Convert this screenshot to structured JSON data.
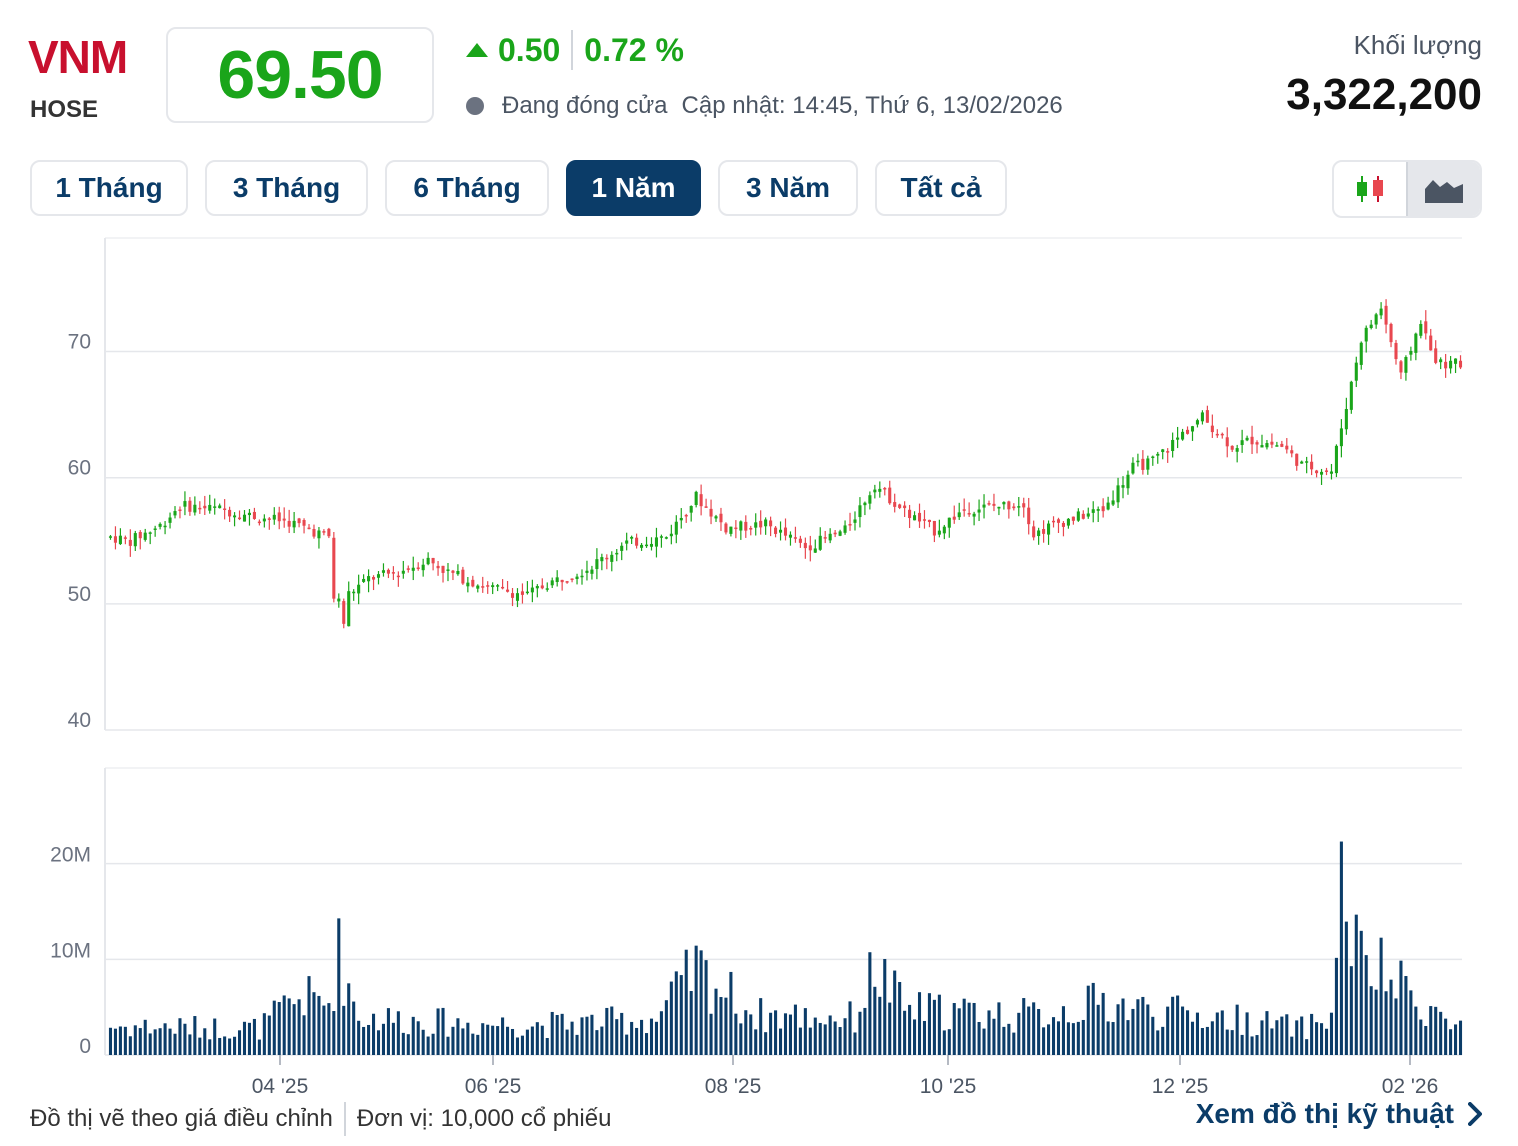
{
  "header": {
    "ticker": "VNM",
    "exchange": "HOSE",
    "price": "69.50",
    "change": "0.50",
    "change_pct": "0.72 %",
    "status": "Đang đóng cửa",
    "updated": "Cập nhật: 14:45, Thứ 6, 13/02/2026",
    "volume_label": "Khối lượng",
    "volume_value": "3,322,200"
  },
  "tabs": [
    {
      "label": "1 Tháng",
      "active": false
    },
    {
      "label": "3 Tháng",
      "active": false
    },
    {
      "label": "6 Tháng",
      "active": false
    },
    {
      "label": "1 Năm",
      "active": true
    },
    {
      "label": "3 Năm",
      "active": false
    },
    {
      "label": "Tất cả",
      "active": false
    }
  ],
  "chart_toggle": {
    "candlestick_icon": "candlestick-icon",
    "area_icon": "area-chart-icon",
    "selected": "area"
  },
  "colors": {
    "up": "#1aa51a",
    "down": "#e8474f",
    "volume": "#0b3c68",
    "brand": "#c8102e",
    "accent": "#0b3c68"
  },
  "chart_data": {
    "type": "candlestick",
    "price_axis": {
      "ticks": [
        40,
        50,
        60,
        70
      ],
      "ylim": [
        40,
        79
      ]
    },
    "volume_axis": {
      "ticks": [
        0,
        10000000,
        20000000
      ],
      "tick_labels": [
        "0",
        "10M",
        "20M"
      ],
      "ylim": [
        0,
        30000000
      ]
    },
    "x_ticks": [
      "04 '25",
      "06 '25",
      "08 '25",
      "10 '25",
      "12 '25",
      "02 '26"
    ],
    "grid": true,
    "price_path": [
      [
        0,
        55.3
      ],
      [
        4,
        55.0
      ],
      [
        10,
        56.2
      ],
      [
        14,
        57.8
      ],
      [
        22,
        57.5
      ],
      [
        28,
        57.0
      ],
      [
        36,
        56.5
      ],
      [
        42,
        55.6
      ],
      [
        44,
        55.3
      ],
      [
        45,
        50.5
      ],
      [
        46,
        50.2
      ],
      [
        47,
        48.5
      ],
      [
        48,
        50.8
      ],
      [
        52,
        52.0
      ],
      [
        58,
        52.5
      ],
      [
        64,
        53.5
      ],
      [
        68,
        52.5
      ],
      [
        76,
        51.3
      ],
      [
        84,
        50.7
      ],
      [
        88,
        51.6
      ],
      [
        96,
        52.8
      ],
      [
        104,
        54.8
      ],
      [
        112,
        55.3
      ],
      [
        118,
        58.5
      ],
      [
        124,
        56.0
      ],
      [
        132,
        56.3
      ],
      [
        140,
        54.5
      ],
      [
        148,
        55.8
      ],
      [
        154,
        59.5
      ],
      [
        160,
        57.3
      ],
      [
        166,
        55.8
      ],
      [
        172,
        57.5
      ],
      [
        180,
        57.8
      ],
      [
        184,
        58.0
      ],
      [
        186,
        55.5
      ],
      [
        190,
        56.3
      ],
      [
        200,
        57.5
      ],
      [
        206,
        60.8
      ],
      [
        210,
        61.3
      ],
      [
        216,
        63.5
      ],
      [
        220,
        64.8
      ],
      [
        226,
        62.5
      ],
      [
        230,
        63.0
      ],
      [
        236,
        62.5
      ],
      [
        240,
        61.0
      ],
      [
        246,
        60.5
      ],
      [
        250,
        67.5
      ],
      [
        252,
        71.0
      ],
      [
        256,
        73.5
      ],
      [
        260,
        68.0
      ],
      [
        264,
        72.5
      ],
      [
        266,
        70.0
      ],
      [
        268,
        69.0
      ],
      [
        272,
        69.0
      ]
    ],
    "volume_path": [
      [
        0,
        3000000
      ],
      [
        30,
        2800000
      ],
      [
        38,
        6000000
      ],
      [
        44,
        5500000
      ],
      [
        46,
        10500000
      ],
      [
        50,
        4000000
      ],
      [
        70,
        3300000
      ],
      [
        90,
        3200000
      ],
      [
        110,
        3800000
      ],
      [
        118,
        9000000
      ],
      [
        130,
        4200000
      ],
      [
        150,
        3900000
      ],
      [
        154,
        9200000
      ],
      [
        160,
        4800000
      ],
      [
        186,
        4100000
      ],
      [
        200,
        5500000
      ],
      [
        210,
        4600000
      ],
      [
        226,
        3800000
      ],
      [
        240,
        2800000
      ],
      [
        246,
        4000000
      ],
      [
        248,
        17500000
      ],
      [
        252,
        9500000
      ],
      [
        256,
        8500000
      ],
      [
        262,
        6200000
      ],
      [
        266,
        5000000
      ],
      [
        270,
        3000000
      ],
      [
        272,
        3200000
      ]
    ]
  },
  "footer": {
    "note": "Đồ thị vẽ theo giá điều chỉnh",
    "unit": "Đơn vị: 10,000 cổ phiếu",
    "link": "Xem đồ thị kỹ thuật"
  }
}
